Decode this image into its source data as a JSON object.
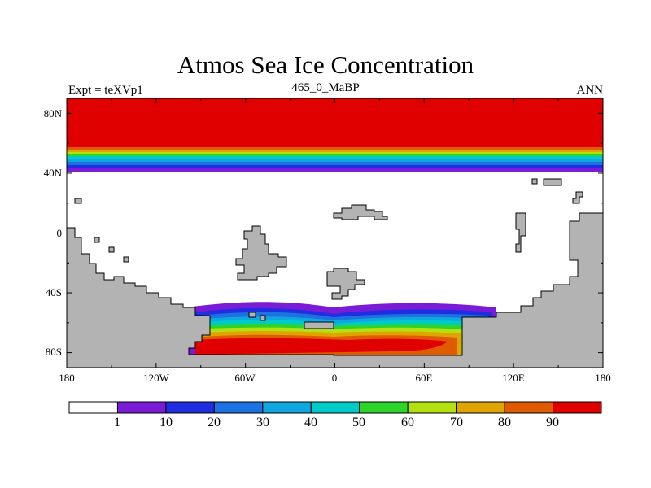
{
  "title": "Atmos Sea Ice Concentration",
  "left_label": "Expt = teXVp1",
  "center_label": "465_0_MaBP",
  "right_label": "ANN",
  "axes": {
    "lon_ticks": [
      "180",
      "120W",
      "60W",
      "0",
      "60E",
      "120E",
      "180"
    ],
    "lat_ticks": [
      "80N",
      "40N",
      "0",
      "40S",
      "80S"
    ]
  },
  "colorbar": {
    "colors": [
      "#ffffff",
      "#7a1bd8",
      "#1f2ee0",
      "#1d71e0",
      "#10a6e0",
      "#00cbc8",
      "#2ed42a",
      "#b3e010",
      "#e0a400",
      "#e05a00",
      "#e00000"
    ],
    "labels": [
      "1",
      "10",
      "20",
      "30",
      "40",
      "50",
      "60",
      "70",
      "80",
      "90"
    ]
  },
  "map_colors": {
    "land": "#b3b3b3",
    "ice_high": "#e00000",
    "open_water": "#ffffff"
  }
}
